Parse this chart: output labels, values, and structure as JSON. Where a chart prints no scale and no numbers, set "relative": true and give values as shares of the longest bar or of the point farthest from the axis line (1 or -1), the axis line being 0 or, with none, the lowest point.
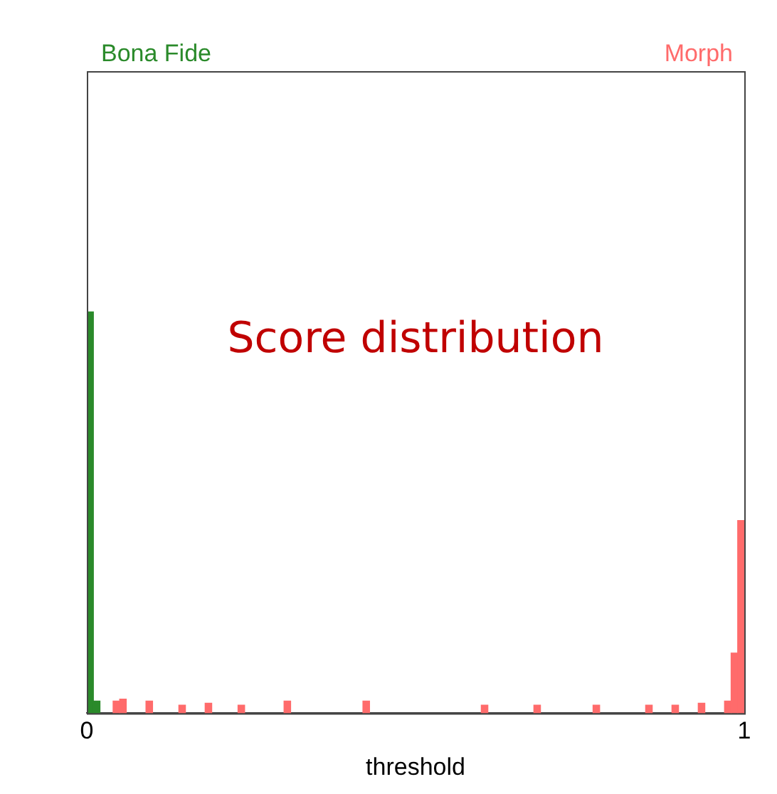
{
  "chart_data": {
    "type": "bar",
    "title": "Score distribution",
    "xlabel": "threshold",
    "relative": true,
    "xlim": [
      0,
      1
    ],
    "xticks": [
      0,
      1
    ],
    "x": [
      0.005,
      0.015,
      0.025,
      0.035,
      0.045,
      0.055,
      0.065,
      0.075,
      0.085,
      0.095,
      0.105,
      0.115,
      0.125,
      0.135,
      0.145,
      0.155,
      0.165,
      0.175,
      0.185,
      0.195,
      0.205,
      0.215,
      0.225,
      0.235,
      0.245,
      0.255,
      0.265,
      0.275,
      0.285,
      0.295,
      0.305,
      0.315,
      0.325,
      0.335,
      0.345,
      0.355,
      0.365,
      0.375,
      0.385,
      0.395,
      0.405,
      0.415,
      0.425,
      0.435,
      0.445,
      0.455,
      0.465,
      0.475,
      0.485,
      0.495,
      0.505,
      0.515,
      0.525,
      0.535,
      0.545,
      0.555,
      0.565,
      0.575,
      0.585,
      0.595,
      0.605,
      0.615,
      0.625,
      0.635,
      0.645,
      0.655,
      0.665,
      0.675,
      0.685,
      0.695,
      0.705,
      0.715,
      0.725,
      0.735,
      0.745,
      0.755,
      0.765,
      0.775,
      0.785,
      0.795,
      0.805,
      0.815,
      0.825,
      0.835,
      0.845,
      0.855,
      0.865,
      0.875,
      0.885,
      0.895,
      0.905,
      0.915,
      0.925,
      0.935,
      0.945,
      0.955,
      0.965,
      0.975,
      0.985,
      0.995
    ],
    "series": [
      {
        "name": "Bona Fide",
        "color": "#2a8a2a",
        "values": [
          1,
          0.03,
          null,
          null,
          null,
          null,
          null,
          null,
          null,
          null,
          null,
          null,
          null,
          null,
          null,
          null,
          null,
          null,
          null,
          null,
          null,
          null,
          null,
          null,
          null,
          null,
          null,
          null,
          null,
          null,
          null,
          null,
          null,
          null,
          null,
          null,
          null,
          null,
          null,
          null,
          null,
          null,
          null,
          null,
          null,
          null,
          null,
          null,
          null,
          null,
          null,
          null,
          null,
          null,
          null,
          null,
          null,
          null,
          null,
          null,
          null,
          null,
          null,
          null,
          null,
          null,
          null,
          null,
          null,
          null,
          null,
          null,
          null,
          null,
          null,
          null,
          null,
          null,
          null,
          null,
          null,
          null,
          null,
          null,
          null,
          null,
          null,
          null,
          null,
          null,
          null,
          null,
          null,
          null,
          null,
          null,
          null,
          null,
          null,
          null
        ]
      },
      {
        "name": "Morph",
        "color": "#ff6b6b",
        "values": [
          null,
          null,
          null,
          null,
          0.03,
          0.035,
          null,
          null,
          null,
          0.03,
          null,
          null,
          null,
          null,
          0.02,
          null,
          null,
          null,
          0.025,
          null,
          null,
          null,
          null,
          0.02,
          null,
          null,
          null,
          null,
          null,
          null,
          0.03,
          null,
          null,
          null,
          null,
          null,
          null,
          null,
          null,
          null,
          null,
          null,
          0.03,
          null,
          null,
          null,
          null,
          null,
          null,
          null,
          null,
          null,
          null,
          null,
          null,
          null,
          null,
          null,
          null,
          null,
          0.02,
          null,
          null,
          null,
          null,
          null,
          null,
          null,
          0.02,
          null,
          null,
          null,
          null,
          null,
          null,
          null,
          null,
          0.02,
          null,
          null,
          null,
          null,
          null,
          null,
          null,
          0.02,
          null,
          null,
          null,
          0.02,
          null,
          null,
          null,
          0.025,
          null,
          null,
          null,
          0.03,
          0.15,
          0.48
        ]
      }
    ]
  }
}
